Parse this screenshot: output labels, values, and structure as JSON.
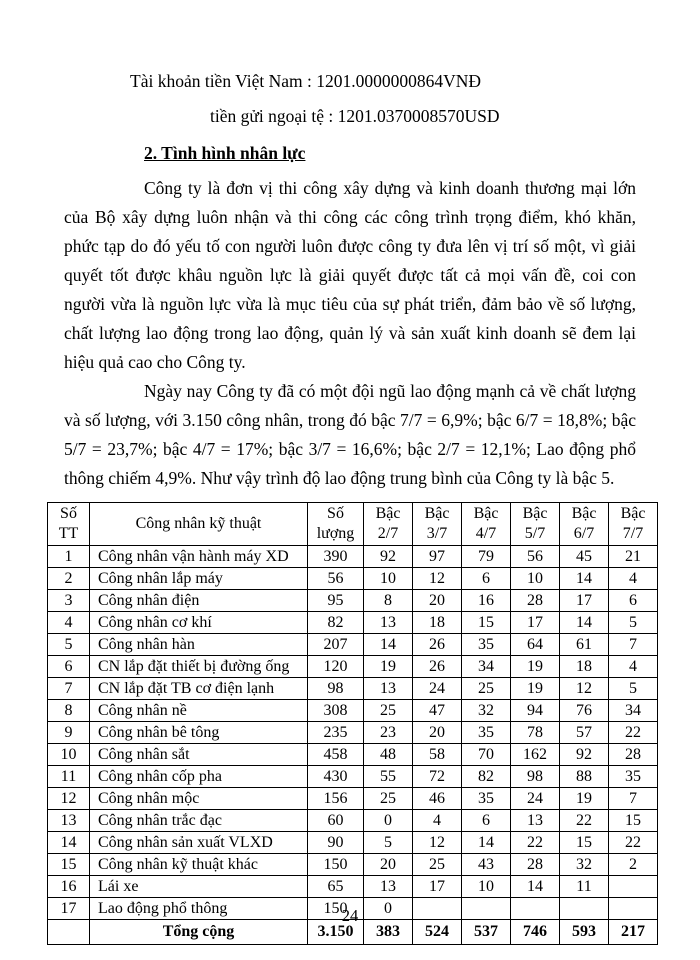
{
  "document": {
    "account_vnd": "Tài khoản tiền Việt Nam : 1201.0000000864VNĐ",
    "account_usd": "tiền gửi ngoại tệ : 1201.0370008570USD",
    "section_heading": "2. Tình hình nhân lực",
    "paragraph1": "Công ty là đơn vị thi công xây dựng và kinh doanh thương mại lớn của Bộ xây dựng luôn nhận và thi công các công trình trọng điểm, khó khăn, phức tạp do đó yếu tố con người luôn được công ty đưa lên vị trí số một, vì giải quyết tốt được khâu nguồn lực là giải quyết được tất cả mọi vấn đề, coi con người vừa là nguồn lực vừa là mục tiêu của sự phát triển, đảm bảo về số lượng, chất lượng lao động trong lao động, quản lý và sản xuất kinh doanh sẽ đem lại hiệu quả cao cho Công ty.",
    "paragraph2": "Ngày nay Công ty đã có một đội ngũ lao động mạnh cả về chất lượng và số lượng, với 3.150 công nhân, trong đó bậc 7/7 = 6,9%; bậc 6/7 = 18,8%; bậc 5/7 = 23,7%; bậc 4/7 = 17%; bậc 3/7 = 16,6%; bậc 2/7 = 12,1%; Lao động phổ thông chiếm 4,9%. Như vậy trình độ lao động trung bình của Công ty là bậc 5.",
    "page_number": "24"
  },
  "table": {
    "headers": [
      "Số TT",
      "Công nhân kỹ thuật",
      "Số lượng",
      "Bậc 2/7",
      "Bậc 3/7",
      "Bậc 4/7",
      "Bậc 5/7",
      "Bậc 6/7",
      "Bậc 7/7"
    ],
    "rows": [
      [
        "1",
        "Công nhân vận hành máy XD",
        "390",
        "92",
        "97",
        "79",
        "56",
        "45",
        "21"
      ],
      [
        "2",
        "Công nhân lắp máy",
        "56",
        "10",
        "12",
        "6",
        "10",
        "14",
        "4"
      ],
      [
        "3",
        "Công nhân điện",
        "95",
        "8",
        "20",
        "16",
        "28",
        "17",
        "6"
      ],
      [
        "4",
        "Công nhân cơ khí",
        "82",
        "13",
        "18",
        "15",
        "17",
        "14",
        "5"
      ],
      [
        "5",
        "Công nhân hàn",
        "207",
        "14",
        "26",
        "35",
        "64",
        "61",
        "7"
      ],
      [
        "6",
        "CN lắp đặt thiết bị đường ống",
        "120",
        "19",
        "26",
        "34",
        "19",
        "18",
        "4"
      ],
      [
        "7",
        "CN lắp đặt TB cơ điện lạnh",
        "98",
        "13",
        "24",
        "25",
        "19",
        "12",
        "5"
      ],
      [
        "8",
        "Công nhân nề",
        "308",
        "25",
        "47",
        "32",
        "94",
        "76",
        "34"
      ],
      [
        "9",
        "Công nhân bê tông",
        "235",
        "23",
        "20",
        "35",
        "78",
        "57",
        "22"
      ],
      [
        "10",
        "Công nhân sắt",
        "458",
        "48",
        "58",
        "70",
        "162",
        "92",
        "28"
      ],
      [
        "11",
        "Công nhân cốp pha",
        "430",
        "55",
        "72",
        "82",
        "98",
        "88",
        "35"
      ],
      [
        "12",
        "Công nhân mộc",
        "156",
        "25",
        "46",
        "35",
        "24",
        "19",
        "7"
      ],
      [
        "13",
        "Công nhân trắc đạc",
        "60",
        "0",
        "4",
        "6",
        "13",
        "22",
        "15"
      ],
      [
        "14",
        "Công nhân sản xuất VLXD",
        "90",
        "5",
        "12",
        "14",
        "22",
        "15",
        "22"
      ],
      [
        "15",
        "Công nhân kỹ thuật khác",
        "150",
        "20",
        "25",
        "43",
        "28",
        "32",
        "2"
      ],
      [
        "16",
        "Lái xe",
        "65",
        "13",
        "17",
        "10",
        "14",
        "11",
        ""
      ],
      [
        "17",
        "Lao động phổ thông",
        "150",
        "0",
        "",
        "",
        "",
        "",
        ""
      ]
    ],
    "total_row": [
      "",
      "Tổng cộng",
      "3.150",
      "383",
      "524",
      "537",
      "746",
      "593",
      "217"
    ]
  }
}
